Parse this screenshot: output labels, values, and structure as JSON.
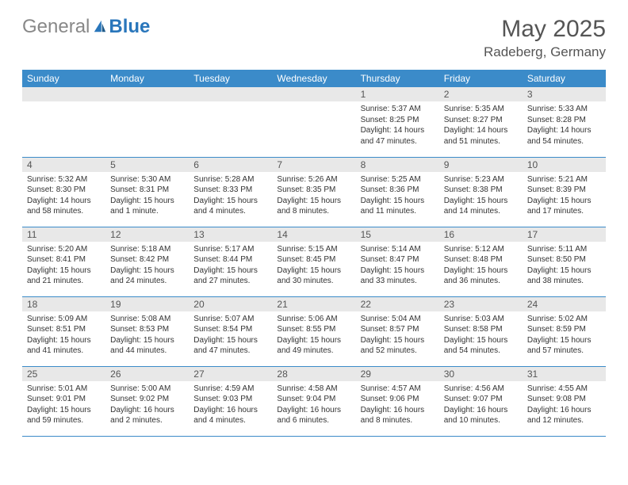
{
  "logo": {
    "gray": "General",
    "blue": "Blue"
  },
  "title": "May 2025",
  "location": "Radeberg, Germany",
  "colors": {
    "header_bg": "#3b8bc9",
    "header_text": "#ffffff",
    "daynum_bg": "#e8e8e8",
    "border": "#3b8bc9",
    "logo_gray": "#888888",
    "logo_blue": "#2976bb"
  },
  "weekdays": [
    "Sunday",
    "Monday",
    "Tuesday",
    "Wednesday",
    "Thursday",
    "Friday",
    "Saturday"
  ],
  "weeks": [
    [
      null,
      null,
      null,
      null,
      {
        "n": "1",
        "sr": "Sunrise: 5:37 AM",
        "ss": "Sunset: 8:25 PM",
        "dl": "Daylight: 14 hours and 47 minutes."
      },
      {
        "n": "2",
        "sr": "Sunrise: 5:35 AM",
        "ss": "Sunset: 8:27 PM",
        "dl": "Daylight: 14 hours and 51 minutes."
      },
      {
        "n": "3",
        "sr": "Sunrise: 5:33 AM",
        "ss": "Sunset: 8:28 PM",
        "dl": "Daylight: 14 hours and 54 minutes."
      }
    ],
    [
      {
        "n": "4",
        "sr": "Sunrise: 5:32 AM",
        "ss": "Sunset: 8:30 PM",
        "dl": "Daylight: 14 hours and 58 minutes."
      },
      {
        "n": "5",
        "sr": "Sunrise: 5:30 AM",
        "ss": "Sunset: 8:31 PM",
        "dl": "Daylight: 15 hours and 1 minute."
      },
      {
        "n": "6",
        "sr": "Sunrise: 5:28 AM",
        "ss": "Sunset: 8:33 PM",
        "dl": "Daylight: 15 hours and 4 minutes."
      },
      {
        "n": "7",
        "sr": "Sunrise: 5:26 AM",
        "ss": "Sunset: 8:35 PM",
        "dl": "Daylight: 15 hours and 8 minutes."
      },
      {
        "n": "8",
        "sr": "Sunrise: 5:25 AM",
        "ss": "Sunset: 8:36 PM",
        "dl": "Daylight: 15 hours and 11 minutes."
      },
      {
        "n": "9",
        "sr": "Sunrise: 5:23 AM",
        "ss": "Sunset: 8:38 PM",
        "dl": "Daylight: 15 hours and 14 minutes."
      },
      {
        "n": "10",
        "sr": "Sunrise: 5:21 AM",
        "ss": "Sunset: 8:39 PM",
        "dl": "Daylight: 15 hours and 17 minutes."
      }
    ],
    [
      {
        "n": "11",
        "sr": "Sunrise: 5:20 AM",
        "ss": "Sunset: 8:41 PM",
        "dl": "Daylight: 15 hours and 21 minutes."
      },
      {
        "n": "12",
        "sr": "Sunrise: 5:18 AM",
        "ss": "Sunset: 8:42 PM",
        "dl": "Daylight: 15 hours and 24 minutes."
      },
      {
        "n": "13",
        "sr": "Sunrise: 5:17 AM",
        "ss": "Sunset: 8:44 PM",
        "dl": "Daylight: 15 hours and 27 minutes."
      },
      {
        "n": "14",
        "sr": "Sunrise: 5:15 AM",
        "ss": "Sunset: 8:45 PM",
        "dl": "Daylight: 15 hours and 30 minutes."
      },
      {
        "n": "15",
        "sr": "Sunrise: 5:14 AM",
        "ss": "Sunset: 8:47 PM",
        "dl": "Daylight: 15 hours and 33 minutes."
      },
      {
        "n": "16",
        "sr": "Sunrise: 5:12 AM",
        "ss": "Sunset: 8:48 PM",
        "dl": "Daylight: 15 hours and 36 minutes."
      },
      {
        "n": "17",
        "sr": "Sunrise: 5:11 AM",
        "ss": "Sunset: 8:50 PM",
        "dl": "Daylight: 15 hours and 38 minutes."
      }
    ],
    [
      {
        "n": "18",
        "sr": "Sunrise: 5:09 AM",
        "ss": "Sunset: 8:51 PM",
        "dl": "Daylight: 15 hours and 41 minutes."
      },
      {
        "n": "19",
        "sr": "Sunrise: 5:08 AM",
        "ss": "Sunset: 8:53 PM",
        "dl": "Daylight: 15 hours and 44 minutes."
      },
      {
        "n": "20",
        "sr": "Sunrise: 5:07 AM",
        "ss": "Sunset: 8:54 PM",
        "dl": "Daylight: 15 hours and 47 minutes."
      },
      {
        "n": "21",
        "sr": "Sunrise: 5:06 AM",
        "ss": "Sunset: 8:55 PM",
        "dl": "Daylight: 15 hours and 49 minutes."
      },
      {
        "n": "22",
        "sr": "Sunrise: 5:04 AM",
        "ss": "Sunset: 8:57 PM",
        "dl": "Daylight: 15 hours and 52 minutes."
      },
      {
        "n": "23",
        "sr": "Sunrise: 5:03 AM",
        "ss": "Sunset: 8:58 PM",
        "dl": "Daylight: 15 hours and 54 minutes."
      },
      {
        "n": "24",
        "sr": "Sunrise: 5:02 AM",
        "ss": "Sunset: 8:59 PM",
        "dl": "Daylight: 15 hours and 57 minutes."
      }
    ],
    [
      {
        "n": "25",
        "sr": "Sunrise: 5:01 AM",
        "ss": "Sunset: 9:01 PM",
        "dl": "Daylight: 15 hours and 59 minutes."
      },
      {
        "n": "26",
        "sr": "Sunrise: 5:00 AM",
        "ss": "Sunset: 9:02 PM",
        "dl": "Daylight: 16 hours and 2 minutes."
      },
      {
        "n": "27",
        "sr": "Sunrise: 4:59 AM",
        "ss": "Sunset: 9:03 PM",
        "dl": "Daylight: 16 hours and 4 minutes."
      },
      {
        "n": "28",
        "sr": "Sunrise: 4:58 AM",
        "ss": "Sunset: 9:04 PM",
        "dl": "Daylight: 16 hours and 6 minutes."
      },
      {
        "n": "29",
        "sr": "Sunrise: 4:57 AM",
        "ss": "Sunset: 9:06 PM",
        "dl": "Daylight: 16 hours and 8 minutes."
      },
      {
        "n": "30",
        "sr": "Sunrise: 4:56 AM",
        "ss": "Sunset: 9:07 PM",
        "dl": "Daylight: 16 hours and 10 minutes."
      },
      {
        "n": "31",
        "sr": "Sunrise: 4:55 AM",
        "ss": "Sunset: 9:08 PM",
        "dl": "Daylight: 16 hours and 12 minutes."
      }
    ]
  ]
}
